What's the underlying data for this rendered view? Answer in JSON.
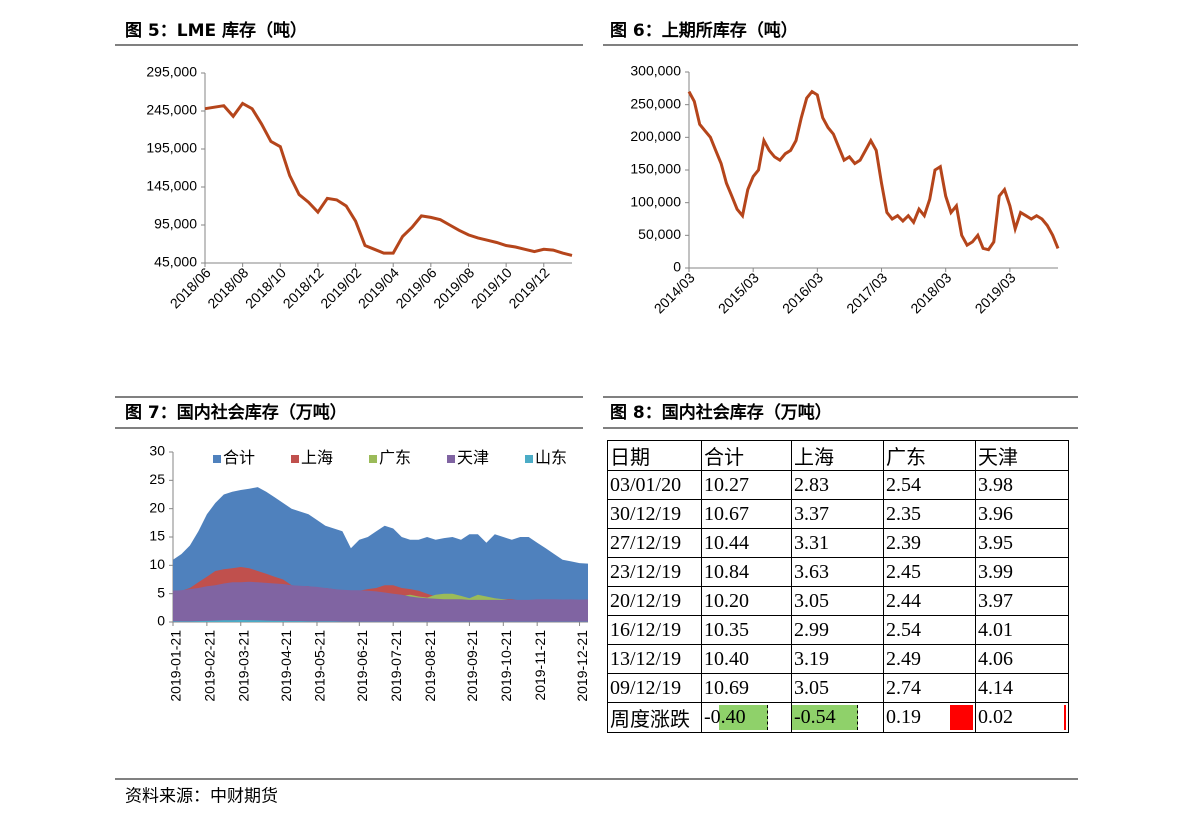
{
  "chart_data": [
    {
      "type": "line",
      "title": "图 5：LME 库存（吨）",
      "color": "#b5451b",
      "grid": false,
      "categories": [
        "2018/06",
        null,
        null,
        null,
        "2018/08",
        null,
        null,
        null,
        "2018/10",
        null,
        null,
        null,
        "2018/12",
        null,
        null,
        null,
        "2019/02",
        null,
        null,
        null,
        "2019/04",
        null,
        null,
        null,
        "2019/06",
        null,
        null,
        null,
        "2019/08",
        null,
        null,
        null,
        "2019/10",
        null,
        null,
        null,
        "2019/12",
        null,
        null,
        null
      ],
      "values": [
        248000,
        250000,
        252000,
        238000,
        255000,
        248000,
        228000,
        205000,
        198000,
        160000,
        135000,
        125000,
        112000,
        130000,
        128000,
        120000,
        100000,
        68000,
        63000,
        58000,
        58000,
        80000,
        92000,
        107000,
        105000,
        102000,
        95000,
        88000,
        82000,
        78000,
        75000,
        72000,
        68000,
        66000,
        63000,
        60000,
        63000,
        62000,
        58000,
        55000
      ],
      "ylim": [
        45000,
        295000
      ],
      "yticks": [
        {
          "value": 45000,
          "label": "45,000"
        },
        {
          "value": 95000,
          "label": "95,000"
        },
        {
          "value": 145000,
          "label": "145,000"
        },
        {
          "value": 195000,
          "label": "195,000"
        },
        {
          "value": 245000,
          "label": "245,000"
        },
        {
          "value": 295000,
          "label": "295,000"
        }
      ]
    },
    {
      "type": "line",
      "title": "图 6：上期所库存（吨）",
      "color": "#b5451b",
      "grid": false,
      "categories": [
        "2014/03",
        null,
        null,
        null,
        null,
        null,
        null,
        null,
        null,
        null,
        null,
        null,
        "2015/03",
        null,
        null,
        null,
        null,
        null,
        null,
        null,
        null,
        null,
        null,
        null,
        "2016/03",
        null,
        null,
        null,
        null,
        null,
        null,
        null,
        null,
        null,
        null,
        null,
        "2017/03",
        null,
        null,
        null,
        null,
        null,
        null,
        null,
        null,
        null,
        null,
        null,
        "2018/03",
        null,
        null,
        null,
        null,
        null,
        null,
        null,
        null,
        null,
        null,
        null,
        "2019/03",
        null,
        null,
        null,
        null,
        null,
        null,
        null,
        null,
        null
      ],
      "values": [
        270000,
        255000,
        220000,
        210000,
        200000,
        180000,
        160000,
        130000,
        110000,
        90000,
        80000,
        120000,
        140000,
        150000,
        195000,
        180000,
        170000,
        165000,
        175000,
        180000,
        195000,
        230000,
        260000,
        270000,
        265000,
        230000,
        215000,
        205000,
        185000,
        165000,
        170000,
        160000,
        165000,
        180000,
        195000,
        180000,
        130000,
        85000,
        75000,
        80000,
        72000,
        80000,
        70000,
        90000,
        80000,
        105000,
        150000,
        155000,
        110000,
        85000,
        95000,
        50000,
        35000,
        40000,
        50000,
        30000,
        28000,
        40000,
        110000,
        120000,
        95000,
        60000,
        85000,
        80000,
        75000,
        80000,
        75000,
        65000,
        50000,
        30000
      ],
      "ylim": [
        0,
        300000
      ],
      "yticks": [
        0,
        {
          "value": 50000,
          "label": "50,000"
        },
        {
          "value": 100000,
          "label": "100,000"
        },
        {
          "value": 150000,
          "label": "150,000"
        },
        {
          "value": 200000,
          "label": "200,000"
        },
        {
          "value": 250000,
          "label": "250,000"
        },
        {
          "value": 300000,
          "label": "300,000"
        }
      ]
    },
    {
      "type": "area",
      "title": "图 7：国内社会库存（万吨）",
      "grid": false,
      "legend": "top",
      "categories": [
        "2019-01-21",
        null,
        null,
        null,
        "2019-02-21",
        null,
        null,
        null,
        "2019-03-21",
        null,
        null,
        null,
        null,
        "2019-04-21",
        null,
        null,
        null,
        "2019-05-21",
        null,
        null,
        null,
        null,
        "2019-06-21",
        null,
        null,
        null,
        "2019-07-21",
        null,
        null,
        null,
        "2019-08-21",
        null,
        null,
        null,
        null,
        "2019-09-21",
        null,
        null,
        null,
        "2019-10-21",
        null,
        null,
        null,
        "2019-11-21",
        null,
        null,
        null,
        null,
        "2019-12-21",
        null
      ],
      "ylim": [
        0,
        30
      ],
      "yticks": [
        0,
        5,
        10,
        15,
        20,
        25,
        30
      ],
      "series": [
        {
          "name": "合计",
          "color": "#4f81bd",
          "values": [
            11,
            12,
            13.5,
            16,
            19,
            21,
            22.5,
            23,
            23.3,
            23.5,
            23.8,
            23,
            22,
            21,
            20,
            19.5,
            19,
            18,
            17,
            16.5,
            16,
            13,
            14.5,
            15,
            16,
            17,
            16.5,
            15,
            14.5,
            14.5,
            15,
            14.5,
            14.8,
            15,
            14.5,
            15.5,
            15.5,
            14,
            15.5,
            15,
            14.5,
            15,
            15,
            14,
            13,
            12,
            11,
            10.7,
            10.4,
            10.3
          ]
        },
        {
          "name": "上海",
          "color": "#c0504d",
          "values": [
            5.5,
            5.5,
            6,
            7,
            8,
            9,
            9.3,
            9.5,
            9.7,
            9.5,
            9,
            8.5,
            8,
            7.5,
            6.5,
            6.3,
            6.3,
            6,
            6,
            5.8,
            5.5,
            5.3,
            5.5,
            5.8,
            6,
            6.5,
            6.5,
            6,
            5.8,
            5.5,
            5,
            4.5,
            4,
            3.8,
            3.6,
            3.5,
            3.5,
            3.8,
            4,
            4,
            4,
            3.8,
            3.8,
            3.8,
            3.7,
            3.6,
            3.3,
            3.2,
            3.1,
            2.8
          ]
        },
        {
          "name": "广东",
          "color": "#9bbb59",
          "values": [
            2,
            2,
            2.2,
            2.3,
            2.5,
            2.5,
            2.6,
            2.6,
            2.7,
            2.8,
            2.8,
            2.9,
            3,
            3,
            3,
            3.1,
            3.2,
            3.3,
            3.3,
            3.4,
            3.5,
            3.6,
            3.7,
            3.8,
            4,
            4.2,
            4.5,
            4.6,
            4.8,
            4.5,
            4.3,
            4.8,
            5,
            5,
            4.6,
            4.2,
            4.8,
            4.5,
            4.2,
            4,
            3.8,
            3.5,
            3.2,
            3,
            2.8,
            2.6,
            2.44,
            2.45,
            2.35,
            2.54
          ]
        },
        {
          "name": "天津",
          "color": "#8064a2",
          "values": [
            5.5,
            5.6,
            5.8,
            6,
            6.3,
            6.5,
            6.8,
            7,
            7,
            7.1,
            7,
            6.9,
            6.8,
            6.7,
            6.5,
            6.4,
            6.3,
            6.2,
            6,
            5.8,
            5.7,
            5.6,
            5.6,
            5.5,
            5.4,
            5.2,
            5,
            4.8,
            4.5,
            4.3,
            4.2,
            4.1,
            4,
            4,
            4,
            3.9,
            3.9,
            3.9,
            3.9,
            3.9,
            3.9,
            3.9,
            3.9,
            4,
            4,
            4,
            3.97,
            3.99,
            3.96,
            3.98
          ]
        },
        {
          "name": "山东",
          "color": "#4bacc6",
          "values": [
            0.1,
            0.1,
            0.1,
            0.15,
            0.2,
            0.25,
            0.3,
            0.3,
            0.35,
            0.3,
            0.3,
            0.25,
            0.2,
            0.2,
            0.15,
            0.15,
            0.1,
            0.1,
            0.1,
            0.1,
            0.05,
            0.05,
            0.05,
            0.05,
            0.05,
            0.05,
            0.05,
            0.05,
            0.05,
            0.05,
            0.05,
            0.05,
            0.05,
            0.05,
            0.05,
            0.05,
            0.05,
            0.05,
            0.05,
            0.05,
            0.05,
            0.05,
            0.05,
            0.05,
            0.05,
            0.05,
            0.05,
            0.05,
            0.05,
            0.05
          ]
        }
      ]
    }
  ],
  "table": {
    "title": "图 8：国内社会库存（万吨）",
    "header": [
      "日期",
      "合计",
      "上海",
      "广东",
      "天津"
    ],
    "rows": [
      [
        "03/01/20",
        "10.27",
        "2.83",
        "2.54",
        "3.98"
      ],
      [
        "30/12/19",
        "10.67",
        "3.37",
        "2.35",
        "3.96"
      ],
      [
        "27/12/19",
        "10.44",
        "3.31",
        "2.39",
        "3.95"
      ],
      [
        "23/12/19",
        "10.84",
        "3.63",
        "2.45",
        "3.99"
      ],
      [
        "20/12/19",
        "10.20",
        "3.05",
        "2.44",
        "3.97"
      ],
      [
        "16/12/19",
        "10.35",
        "2.99",
        "2.54",
        "4.01"
      ],
      [
        "13/12/19",
        "10.40",
        "3.19",
        "2.49",
        "4.06"
      ],
      [
        "09/12/19",
        "10.69",
        "3.05",
        "2.74",
        "4.14"
      ],
      [
        "周度涨跌",
        "-0.40",
        "-0.54",
        "0.19",
        "0.02"
      ]
    ]
  },
  "source": "资料来源：中财期货"
}
